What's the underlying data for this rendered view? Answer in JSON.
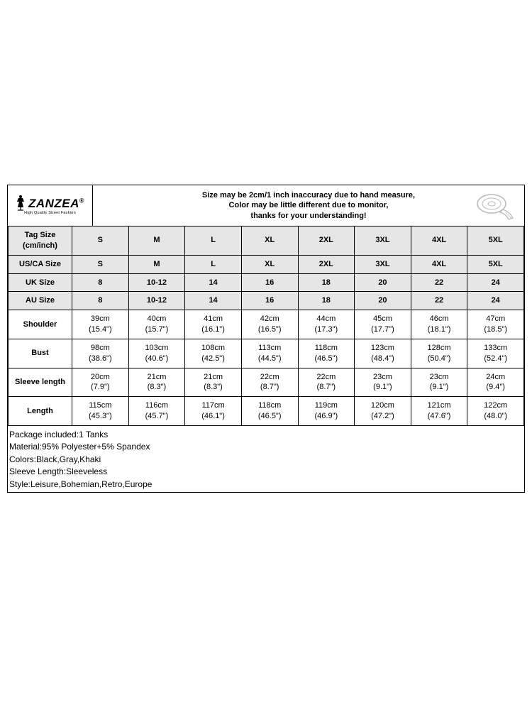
{
  "brand": {
    "name": "ZANZEA",
    "trademark": "®",
    "tagline": "High Quality Street Fashion"
  },
  "notice": {
    "line1": "Size may be 2cm/1 inch inaccuracy due to hand measure,",
    "line2": "Color may be little different due to monitor,",
    "line3": "thanks for your understanding!"
  },
  "table": {
    "header_label": "Tag Size\n(cm/inch)",
    "columns": [
      "S",
      "M",
      "L",
      "XL",
      "2XL",
      "3XL",
      "4XL",
      "5XL"
    ],
    "row_label_col_width": 90,
    "header_bg": "#e6e6e6",
    "border_color": "#000000",
    "rows": [
      {
        "label": "US/CA Size",
        "shaded": true,
        "cells": [
          "S",
          "M",
          "L",
          "XL",
          "2XL",
          "3XL",
          "4XL",
          "5XL"
        ]
      },
      {
        "label": "UK Size",
        "shaded": true,
        "cells": [
          "8",
          "10-12",
          "14",
          "16",
          "18",
          "20",
          "22",
          "24"
        ]
      },
      {
        "label": "AU Size",
        "shaded": true,
        "cells": [
          "8",
          "10-12",
          "14",
          "16",
          "18",
          "20",
          "22",
          "24"
        ]
      },
      {
        "label": "Shoulder",
        "shaded": false,
        "cells": [
          "39cm\n(15.4\")",
          "40cm\n(15.7\")",
          "41cm\n(16.1\")",
          "42cm\n(16.5\")",
          "44cm\n(17.3\")",
          "45cm\n(17.7\")",
          "46cm\n(18.1\")",
          "47cm\n(18.5\")"
        ]
      },
      {
        "label": "Bust",
        "shaded": false,
        "cells": [
          "98cm\n(38.6\")",
          "103cm\n(40.6\")",
          "108cm\n(42.5\")",
          "113cm\n(44.5\")",
          "118cm\n(46.5\")",
          "123cm\n(48.4\")",
          "128cm\n(50.4\")",
          "133cm\n(52.4\")"
        ]
      },
      {
        "label": "Sleeve length",
        "shaded": false,
        "cells": [
          "20cm\n(7.9\")",
          "21cm\n(8.3\")",
          "21cm\n(8.3\")",
          "22cm\n(8.7\")",
          "22cm\n(8.7\")",
          "23cm\n(9.1\")",
          "23cm\n(9.1\")",
          "24cm\n(9.4\")"
        ]
      },
      {
        "label": "Length",
        "shaded": false,
        "cells": [
          "115cm\n(45.3\")",
          "116cm\n(45.7\")",
          "117cm\n(46.1\")",
          "118cm\n(46.5\")",
          "119cm\n(46.9\")",
          "120cm\n(47.2\")",
          "121cm\n(47.6\")",
          "122cm\n(48.0\")"
        ]
      }
    ]
  },
  "details": [
    "Package included:1 Tanks",
    "Material:95% Polyester+5% Spandex",
    "Colors:Black,Gray,Khaki",
    "Sleeve Length:Sleeveless",
    "Style:Leisure,Bohemian,Retro,Europe"
  ],
  "colors": {
    "background": "#ffffff",
    "shaded_bg": "#e6e6e6",
    "text": "#000000",
    "border": "#000000",
    "tape_stroke": "#b8b8b8"
  }
}
